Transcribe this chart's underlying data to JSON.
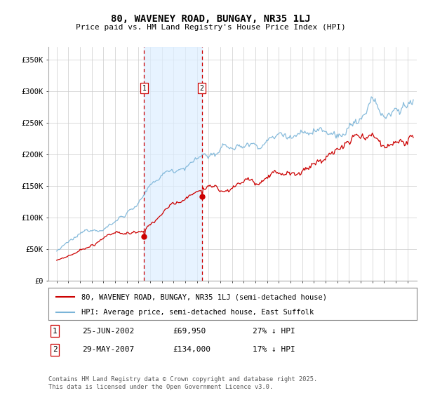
{
  "title": "80, WAVENEY ROAD, BUNGAY, NR35 1LJ",
  "subtitle": "Price paid vs. HM Land Registry's House Price Index (HPI)",
  "ylabel_ticks": [
    "£0",
    "£50K",
    "£100K",
    "£150K",
    "£200K",
    "£250K",
    "£300K",
    "£350K"
  ],
  "ytick_values": [
    0,
    50000,
    100000,
    150000,
    200000,
    250000,
    300000,
    350000
  ],
  "ylim": [
    0,
    370000
  ],
  "xlim": [
    1994.3,
    2025.8
  ],
  "sale1_x": 2002.48,
  "sale1_y": 69950,
  "sale2_x": 2007.41,
  "sale2_y": 134000,
  "hpi_color": "#7ab4d8",
  "price_color": "#cc0000",
  "shade_color": "#ddeeff",
  "grid_color": "#cccccc",
  "background_color": "#ffffff",
  "legend1": "80, WAVENEY ROAD, BUNGAY, NR35 1LJ (semi-detached house)",
  "legend2": "HPI: Average price, semi-detached house, East Suffolk",
  "footer": "Contains HM Land Registry data © Crown copyright and database right 2025.\nThis data is licensed under the Open Government Licence v3.0."
}
